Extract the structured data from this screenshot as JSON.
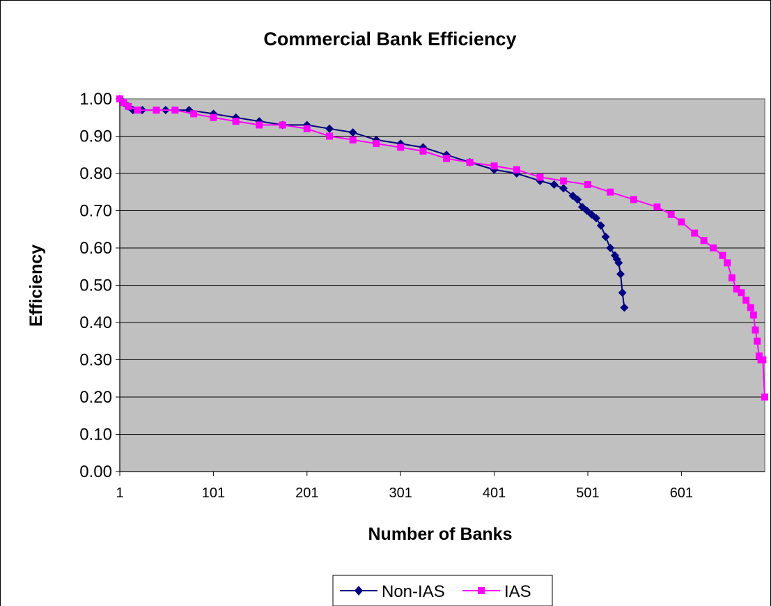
{
  "chart_data": {
    "type": "line",
    "title": "Commercial Bank Efficiency",
    "xlabel": "Number of Banks",
    "ylabel": "Efficiency",
    "x_ticks": [
      "1",
      "101",
      "201",
      "301",
      "401",
      "501",
      "601"
    ],
    "y_ticks": [
      "0.00",
      "0.10",
      "0.20",
      "0.30",
      "0.40",
      "0.50",
      "0.60",
      "0.70",
      "0.80",
      "0.90",
      "1.00"
    ],
    "xlim": [
      1,
      690
    ],
    "ylim": [
      0,
      1
    ],
    "grid": "horizontal",
    "legend_position": "bottom",
    "plot_background": "#C0C0C0",
    "series": [
      {
        "name": "Non-IAS",
        "color": "#000080",
        "marker": "diamond",
        "x": [
          1,
          5,
          10,
          15,
          25,
          50,
          75,
          101,
          125,
          150,
          175,
          201,
          225,
          250,
          275,
          301,
          325,
          350,
          375,
          401,
          425,
          450,
          465,
          475,
          485,
          490,
          495,
          500,
          505,
          510,
          515,
          520,
          525,
          530,
          532,
          534,
          536,
          538,
          540
        ],
        "y": [
          1.0,
          0.99,
          0.98,
          0.97,
          0.97,
          0.97,
          0.97,
          0.96,
          0.95,
          0.94,
          0.93,
          0.93,
          0.92,
          0.91,
          0.89,
          0.88,
          0.87,
          0.85,
          0.83,
          0.81,
          0.8,
          0.78,
          0.77,
          0.76,
          0.74,
          0.73,
          0.71,
          0.7,
          0.69,
          0.68,
          0.66,
          0.63,
          0.6,
          0.58,
          0.57,
          0.56,
          0.53,
          0.48,
          0.44
        ]
      },
      {
        "name": "IAS",
        "color": "#FF00FF",
        "marker": "square",
        "x": [
          1,
          5,
          10,
          20,
          40,
          60,
          80,
          101,
          125,
          150,
          175,
          201,
          225,
          250,
          275,
          301,
          325,
          350,
          375,
          401,
          425,
          450,
          475,
          501,
          525,
          550,
          575,
          590,
          601,
          615,
          625,
          635,
          645,
          650,
          655,
          660,
          665,
          670,
          675,
          678,
          680,
          682,
          684,
          686,
          688,
          690
        ],
        "y": [
          1.0,
          0.99,
          0.98,
          0.97,
          0.97,
          0.97,
          0.96,
          0.95,
          0.94,
          0.93,
          0.93,
          0.92,
          0.9,
          0.89,
          0.88,
          0.87,
          0.86,
          0.84,
          0.83,
          0.82,
          0.81,
          0.79,
          0.78,
          0.77,
          0.75,
          0.73,
          0.71,
          0.69,
          0.67,
          0.64,
          0.62,
          0.6,
          0.58,
          0.56,
          0.52,
          0.49,
          0.48,
          0.46,
          0.44,
          0.42,
          0.38,
          0.35,
          0.31,
          0.3,
          0.3,
          0.2
        ]
      }
    ]
  }
}
